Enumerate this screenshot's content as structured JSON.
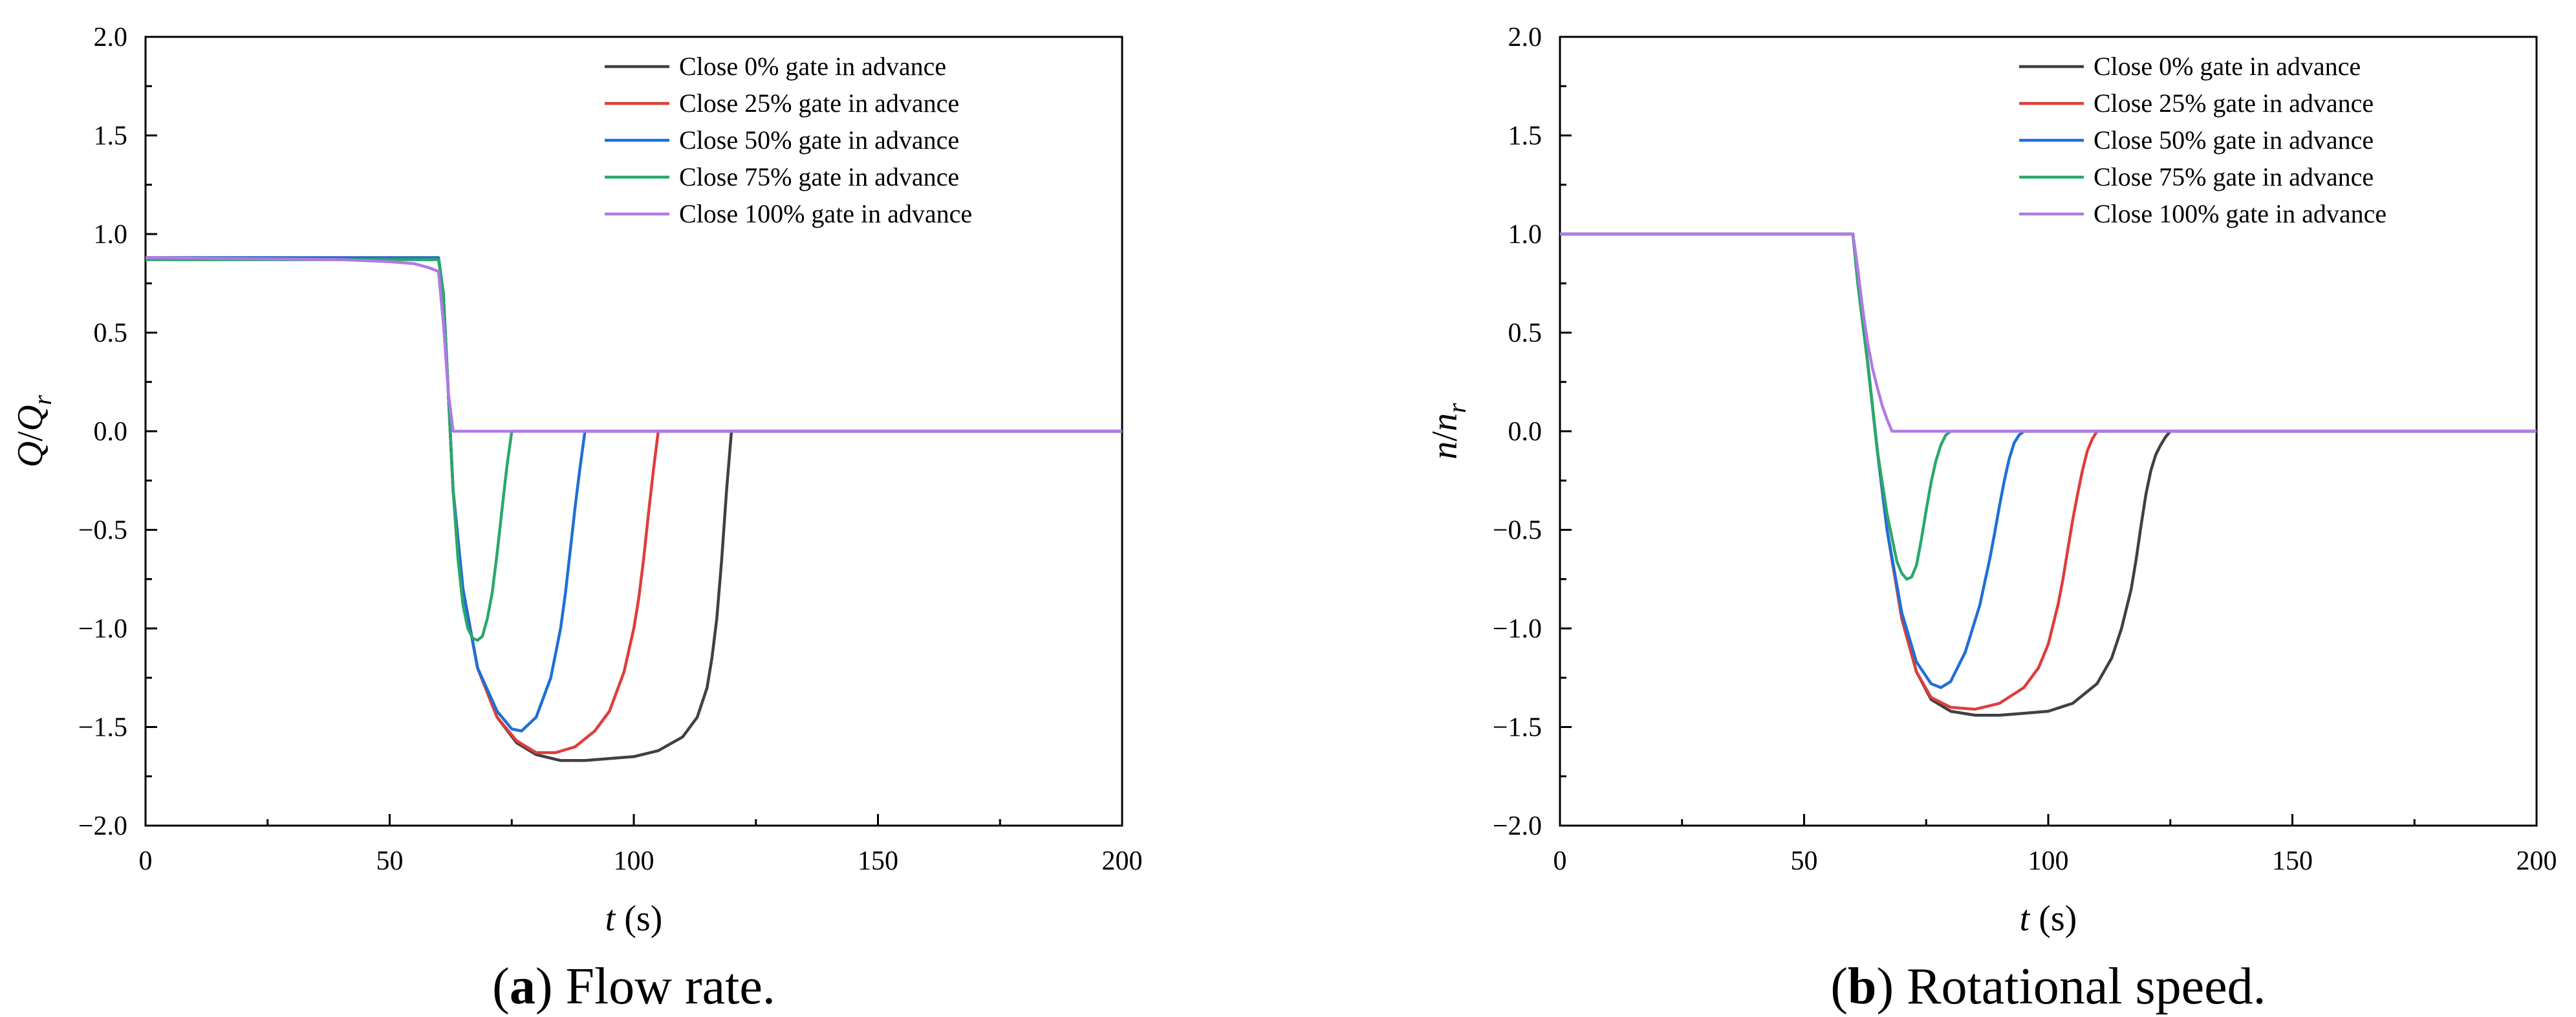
{
  "chart_data": [
    {
      "type": "line",
      "caption": {
        "letter": "a",
        "text": "Flow rate."
      },
      "xlabel": {
        "var": "t",
        "unit": " (s)"
      },
      "ylabel": {
        "var": "Q",
        "sep": "/",
        "sub": "r"
      },
      "xlim": [
        0,
        200
      ],
      "ylim": [
        -2.0,
        2.0
      ],
      "xticks": [
        0,
        50,
        100,
        150,
        200
      ],
      "yticks": [
        "2.0",
        "1.5",
        "1.0",
        "0.5",
        "0.0",
        "−0.5",
        "−1.0",
        "−1.5",
        "−2.0"
      ],
      "yticks_values": [
        2.0,
        1.5,
        1.0,
        0.5,
        0.0,
        -0.5,
        -1.0,
        -1.5,
        -2.0
      ],
      "grid": false,
      "legend_position": "top-right",
      "series": [
        {
          "name": "Close 0% gate in advance",
          "color": "#404040",
          "x": [
            0,
            60,
            61,
            62,
            63,
            65,
            68,
            72,
            76,
            80,
            85,
            90,
            95,
            100,
            105,
            110,
            113,
            115,
            116,
            117,
            118,
            119,
            120,
            200
          ],
          "y": [
            0.88,
            0.88,
            0.7,
            0.2,
            -0.3,
            -0.8,
            -1.2,
            -1.45,
            -1.58,
            -1.64,
            -1.67,
            -1.67,
            -1.66,
            -1.65,
            -1.62,
            -1.55,
            -1.45,
            -1.3,
            -1.15,
            -0.95,
            -0.65,
            -0.3,
            0.0,
            0.0
          ]
        },
        {
          "name": "Close 25% gate in advance",
          "color": "#e03c3c",
          "x": [
            0,
            60,
            61,
            62,
            63,
            65,
            68,
            72,
            76,
            80,
            84,
            88,
            92,
            95,
            98,
            100,
            101,
            102,
            103,
            104,
            105,
            200
          ],
          "y": [
            0.88,
            0.88,
            0.7,
            0.2,
            -0.3,
            -0.8,
            -1.2,
            -1.45,
            -1.57,
            -1.63,
            -1.63,
            -1.6,
            -1.52,
            -1.42,
            -1.22,
            -1.0,
            -0.85,
            -0.65,
            -0.42,
            -0.2,
            0.0,
            0.0
          ]
        },
        {
          "name": "Close 50% gate in advance",
          "color": "#1f6fd6",
          "x": [
            0,
            60,
            61,
            62,
            63,
            65,
            68,
            72,
            75,
            77,
            80,
            83,
            85,
            86,
            87,
            88,
            89,
            90,
            200
          ],
          "y": [
            0.88,
            0.88,
            0.7,
            0.2,
            -0.3,
            -0.8,
            -1.2,
            -1.42,
            -1.51,
            -1.52,
            -1.45,
            -1.25,
            -1.0,
            -0.82,
            -0.6,
            -0.38,
            -0.18,
            0.0,
            0.0
          ]
        },
        {
          "name": "Close 75% gate in advance",
          "color": "#2aa86a",
          "x": [
            0,
            60,
            61,
            62,
            63,
            64,
            65,
            66,
            67,
            68,
            69,
            70,
            71,
            72,
            73,
            74,
            75,
            200
          ],
          "y": [
            0.87,
            0.87,
            0.7,
            0.2,
            -0.3,
            -0.65,
            -0.88,
            -1.0,
            -1.05,
            -1.06,
            -1.04,
            -0.95,
            -0.82,
            -0.62,
            -0.4,
            -0.18,
            0.0,
            0.0
          ]
        },
        {
          "name": "Close 100% gate in advance",
          "color": "#b07ae6",
          "x": [
            0,
            40,
            50,
            55,
            58,
            60,
            61,
            62,
            63,
            200
          ],
          "y": [
            0.88,
            0.87,
            0.86,
            0.85,
            0.83,
            0.81,
            0.55,
            0.2,
            0.0,
            0.0
          ]
        }
      ]
    },
    {
      "type": "line",
      "caption": {
        "letter": "b",
        "text": "Rotational speed."
      },
      "xlabel": {
        "var": "t",
        "unit": " (s)"
      },
      "ylabel": {
        "var": "n",
        "sep": "/",
        "sub": "r"
      },
      "xlim": [
        0,
        200
      ],
      "ylim": [
        -2.0,
        2.0
      ],
      "xticks": [
        0,
        50,
        100,
        150,
        200
      ],
      "yticks": [
        "2.0",
        "1.5",
        "1.0",
        "0.5",
        "0.0",
        "−0.5",
        "−1.0",
        "−1.5",
        "−2.0"
      ],
      "yticks_values": [
        2.0,
        1.5,
        1.0,
        0.5,
        0.0,
        -0.5,
        -1.0,
        -1.5,
        -2.0
      ],
      "grid": false,
      "legend_position": "top-right",
      "series": [
        {
          "name": "Close 0% gate in advance",
          "color": "#404040",
          "x": [
            0,
            60,
            61,
            63,
            65,
            67,
            70,
            73,
            76,
            80,
            85,
            90,
            95,
            100,
            105,
            110,
            113,
            115,
            117,
            118,
            119,
            120,
            121,
            122,
            123,
            124,
            125,
            200
          ],
          "y": [
            1.0,
            1.0,
            0.75,
            0.35,
            -0.1,
            -0.5,
            -0.95,
            -1.22,
            -1.36,
            -1.42,
            -1.44,
            -1.44,
            -1.43,
            -1.42,
            -1.38,
            -1.28,
            -1.15,
            -1.0,
            -0.8,
            -0.65,
            -0.48,
            -0.32,
            -0.2,
            -0.12,
            -0.07,
            -0.03,
            0.0,
            0.0
          ]
        },
        {
          "name": "Close 25% gate in advance",
          "color": "#e03c3c",
          "x": [
            0,
            60,
            61,
            63,
            65,
            67,
            70,
            73,
            76,
            80,
            85,
            90,
            95,
            98,
            100,
            102,
            103,
            104,
            105,
            106,
            107,
            108,
            109,
            110,
            200
          ],
          "y": [
            1.0,
            1.0,
            0.75,
            0.35,
            -0.1,
            -0.5,
            -0.95,
            -1.22,
            -1.35,
            -1.4,
            -1.41,
            -1.38,
            -1.3,
            -1.2,
            -1.08,
            -0.88,
            -0.75,
            -0.6,
            -0.45,
            -0.32,
            -0.2,
            -0.1,
            -0.04,
            0.0,
            0.0
          ]
        },
        {
          "name": "Close 50% gate in advance",
          "color": "#1f6fd6",
          "x": [
            0,
            60,
            61,
            63,
            65,
            67,
            70,
            73,
            76,
            78,
            80,
            83,
            86,
            88,
            89,
            90,
            91,
            92,
            93,
            94,
            95,
            200
          ],
          "y": [
            1.0,
            1.0,
            0.75,
            0.35,
            -0.1,
            -0.5,
            -0.92,
            -1.17,
            -1.28,
            -1.3,
            -1.27,
            -1.12,
            -0.88,
            -0.65,
            -0.52,
            -0.38,
            -0.25,
            -0.14,
            -0.06,
            -0.02,
            0.0,
            0.0
          ]
        },
        {
          "name": "Close 75% gate in advance",
          "color": "#2aa86a",
          "x": [
            0,
            60,
            61,
            63,
            65,
            67,
            69,
            70,
            71,
            72,
            73,
            74,
            75,
            76,
            77,
            78,
            79,
            80,
            200
          ],
          "y": [
            1.0,
            1.0,
            0.75,
            0.35,
            -0.1,
            -0.42,
            -0.66,
            -0.72,
            -0.75,
            -0.74,
            -0.68,
            -0.55,
            -0.4,
            -0.26,
            -0.15,
            -0.07,
            -0.02,
            0.0,
            0.0
          ]
        },
        {
          "name": "Close 100% gate in advance",
          "color": "#b07ae6",
          "x": [
            0,
            60,
            61,
            62,
            63,
            64,
            65,
            66,
            67,
            68,
            200
          ],
          "y": [
            1.0,
            1.0,
            0.82,
            0.62,
            0.45,
            0.32,
            0.22,
            0.13,
            0.06,
            0.0,
            0.0
          ]
        }
      ]
    }
  ]
}
